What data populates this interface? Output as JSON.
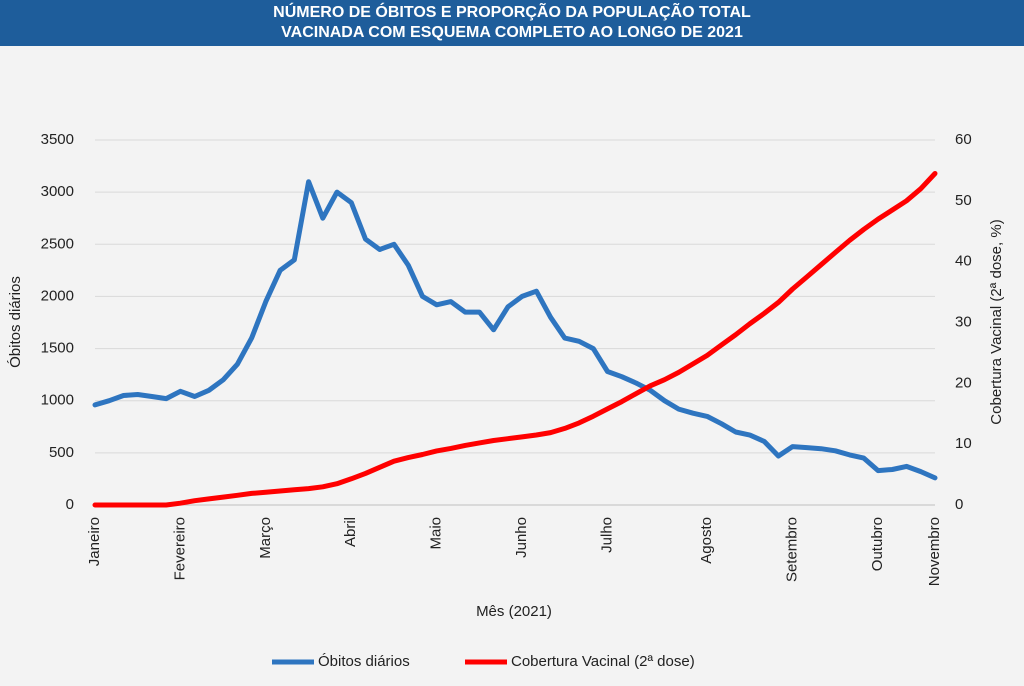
{
  "chart_data": {
    "type": "line",
    "title": [
      "NÚMERO DE ÓBITOS E PROPORÇÃO DA POPULAÇÃO TOTAL",
      "VACINADA COM ESQUEMA COMPLETO AO LONGO DE 2021"
    ],
    "x_label": "Mês (2021)",
    "y_label": "Óbitos diários",
    "y2_label": "Cobertura Vacinal (2ª dose, %)",
    "categories": [
      "Janeiro",
      null,
      null,
      null,
      null,
      null,
      "Fevereiro",
      null,
      null,
      null,
      null,
      null,
      "Março",
      null,
      null,
      null,
      null,
      null,
      "Abril",
      null,
      null,
      null,
      null,
      null,
      "Maio",
      null,
      null,
      null,
      null,
      null,
      "Junho",
      null,
      null,
      null,
      null,
      null,
      "Julho",
      null,
      null,
      null,
      null,
      null,
      null,
      "Agosto",
      null,
      null,
      null,
      null,
      null,
      "Setembro",
      null,
      null,
      null,
      null,
      null,
      "Outubro",
      null,
      null,
      null,
      "Novembro"
    ],
    "series": [
      {
        "name": "Óbitos diários",
        "color": "#2e75c0",
        "values": [
          960,
          1000,
          1050,
          1060,
          1040,
          1020,
          1090,
          1040,
          1100,
          1200,
          1350,
          1600,
          1950,
          2250,
          2350,
          3100,
          2750,
          3000,
          2900,
          2550,
          2450,
          2500,
          2300,
          2000,
          1920,
          1950,
          1850,
          1850,
          1680,
          1900,
          2000,
          2050,
          1800,
          1600,
          1570,
          1500,
          1280,
          1230,
          1170,
          1100,
          1000,
          920,
          880,
          850,
          780,
          700,
          670,
          610,
          470,
          560,
          550,
          540,
          520,
          480,
          450,
          330,
          340,
          370,
          320,
          260
        ]
      },
      {
        "name": "Cobertura Vacinal (2ª dose)",
        "color": "#ff0000",
        "axis": "y2",
        "values": [
          0,
          0,
          0,
          0,
          0,
          0,
          0.3,
          0.7,
          1,
          1.3,
          1.6,
          1.9,
          2.1,
          2.3,
          2.5,
          2.7,
          3.0,
          3.5,
          4.3,
          5.2,
          6.2,
          7.2,
          7.8,
          8.3,
          8.9,
          9.3,
          9.8,
          10.2,
          10.6,
          10.9,
          11.2,
          11.5,
          11.9,
          12.6,
          13.5,
          14.6,
          15.8,
          17,
          18.3,
          19.6,
          20.6,
          21.8,
          23.2,
          24.6,
          26.3,
          28.0,
          29.8,
          31.5,
          33.3,
          35.5,
          37.5,
          39.5,
          41.5,
          43.5,
          45.3,
          47.0,
          48.5,
          50.0,
          52.0,
          54.5
        ]
      }
    ],
    "ylim": [
      0,
      3500
    ],
    "yticks": [
      0,
      500,
      1000,
      1500,
      2000,
      2500,
      3000,
      3500
    ],
    "y2lim": [
      0,
      60
    ],
    "y2ticks": [
      0,
      10,
      20,
      30,
      40,
      50,
      60
    ],
    "grid": true,
    "legend": "bottom"
  }
}
